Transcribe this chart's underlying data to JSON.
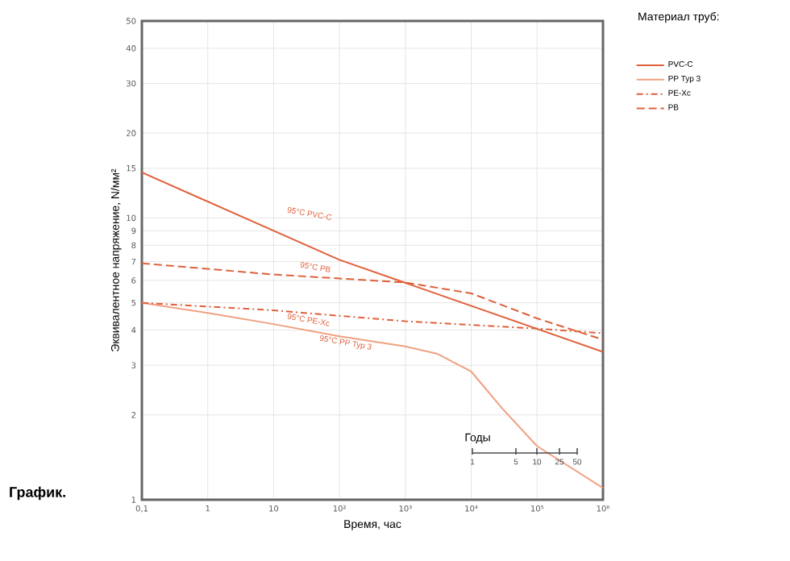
{
  "chart_data": {
    "type": "line",
    "xlabel": "Время, час",
    "ylabel": "Эквивалентное напряжение, N/мм²",
    "legend_title": "Материал труб:",
    "annotations": [
      "График.",
      "95°C PVC-C",
      "95°C PB",
      "95°C PE-Xc",
      "95°C PP Typ 3",
      "Годы",
      "1",
      "5",
      "10",
      "25",
      "50"
    ],
    "series": [
      {
        "name": "PVC-C",
        "color": "#e0603a",
        "line_style": "solid",
        "x": [
          0.1,
          100,
          1000000
        ],
        "values": [
          14.5,
          7.1,
          3.35
        ]
      },
      {
        "name": "PP Typ 3",
        "color": "#f0a080",
        "line_style": "solid",
        "x": [
          0.1,
          1,
          10,
          100,
          1000,
          3000,
          10000,
          30000,
          100000,
          1000000
        ],
        "values": [
          5.0,
          4.6,
          4.2,
          3.8,
          3.5,
          3.3,
          2.85,
          2.1,
          1.55,
          1.1
        ]
      },
      {
        "name": "PE-Xc",
        "color": "#e0603a",
        "line_style": "dashdot",
        "x": [
          0.1,
          10,
          1000,
          100000,
          1000000
        ],
        "values": [
          5.0,
          4.7,
          4.3,
          4.05,
          3.9
        ]
      },
      {
        "name": "PB",
        "color": "#e0603a",
        "line_style": "dashed",
        "x": [
          0.1,
          10,
          1000,
          10000,
          100000,
          1000000
        ],
        "values": [
          6.9,
          6.3,
          5.9,
          5.4,
          4.4,
          3.7
        ]
      }
    ],
    "log": "xy",
    "xlim": [
      0.1,
      1000000
    ],
    "ylim": [
      1,
      50
    ],
    "xticks": [
      {
        "value": 0.1,
        "label": "0,1"
      },
      1,
      10,
      {
        "value": 100,
        "label": "10²"
      },
      {
        "value": 1000,
        "label": "10³"
      },
      {
        "value": 10000,
        "label": "10⁴"
      },
      {
        "value": 100000,
        "label": "10⁵"
      },
      {
        "value": 1000000,
        "label": "10⁶"
      }
    ],
    "yticks": [
      1,
      2,
      3,
      4,
      5,
      6,
      7,
      8,
      9,
      10,
      15,
      20,
      30,
      40,
      50
    ],
    "grid": true,
    "legend": "right"
  }
}
